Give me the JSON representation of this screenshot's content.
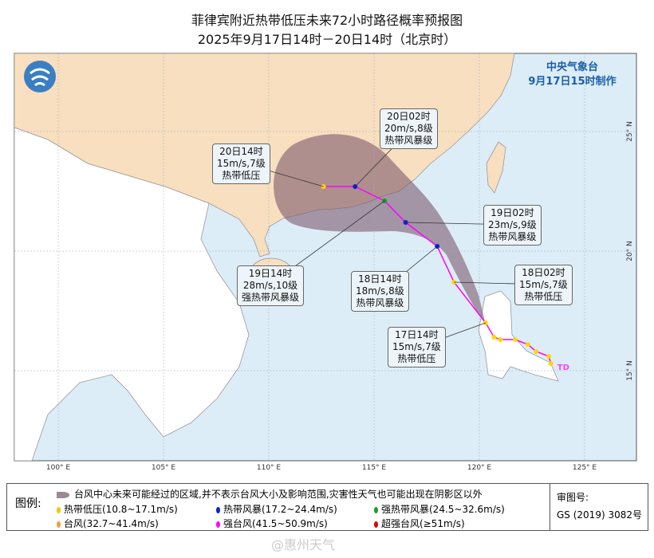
{
  "title": "菲律宾附近热带低压未来72小时路径概率预报图",
  "subtitle": "2025年9月17日14时－20日14时（北京时）",
  "agency": {
    "name": "中央气象台",
    "issued": "9月17日15时制作"
  },
  "lon_ticks": [
    "100° E",
    "105° E",
    "110° E",
    "115° E",
    "120° E",
    "125° E"
  ],
  "lat_ticks": [
    "15° N",
    "20° N",
    "25° N"
  ],
  "colors": {
    "track": "#ff00ff",
    "cone": "#7d5a6e",
    "land_china": "#f8dfbf",
    "sea": "#dcedf8",
    "td": "#ffd700",
    "ts": "#1020d0",
    "sts": "#1a9a2a"
  },
  "past_track": [
    [
      123.4,
      15.3
    ],
    [
      123.3,
      15.6
    ],
    [
      122.7,
      15.8
    ],
    [
      122.3,
      16.1
    ],
    [
      121.7,
      16.3
    ],
    [
      121.0,
      16.3
    ],
    [
      120.7,
      16.4
    ]
  ],
  "td_label": "TD",
  "forecast": [
    {
      "time": "17日14时",
      "wind": "15m/s,7级",
      "grade": "热带低压",
      "lon": 120.3,
      "lat": 17.0,
      "cat": "td"
    },
    {
      "time": "18日02时",
      "wind": "15m/s,7级",
      "grade": "热带低压",
      "lon": 118.8,
      "lat": 18.7,
      "cat": "td"
    },
    {
      "time": "18日14时",
      "wind": "18m/s,8级",
      "grade": "热带风暴级",
      "lon": 118.0,
      "lat": 20.2,
      "cat": "ts"
    },
    {
      "time": "19日02时",
      "wind": "23m/s,9级",
      "grade": "热带风暴级",
      "lon": 116.5,
      "lat": 21.2,
      "cat": "ts"
    },
    {
      "time": "19日14时",
      "wind": "28m/s,10级",
      "grade": "强热带风暴级",
      "lon": 115.5,
      "lat": 22.1,
      "cat": "sts"
    },
    {
      "time": "20日02时",
      "wind": "20m/s,8级",
      "grade": "热带风暴级",
      "lon": 114.1,
      "lat": 22.7,
      "cat": "ts"
    },
    {
      "time": "20日14时",
      "wind": "15m/s,7级",
      "grade": "热带低压",
      "lon": 112.6,
      "lat": 22.7,
      "cat": "td"
    }
  ],
  "legend": {
    "head": "图例:",
    "cone": "台风中心未来可能经过的区域,并不表示台风大小及影响范围,灾害性天气也可能出现在阴影区以外",
    "items": [
      {
        "label": "热带低压(10.8~17.1m/s)",
        "color": "#f0c800"
      },
      {
        "label": "热带风暴(17.2~24.4m/s)",
        "color": "#1020d0"
      },
      {
        "label": "强热带风暴(24.5~32.6m/s)",
        "color": "#1a9a2a"
      },
      {
        "label": "台风(32.7~41.4m/s)",
        "color": "#f59a40"
      },
      {
        "label": "强台风(41.5~50.9m/s)",
        "color": "#ff00ff"
      },
      {
        "label": "超强台风(≥51m/s)",
        "color": "#e00000"
      }
    ],
    "audit_label": "审图号:",
    "audit_no": "GS (2019) 3082号"
  },
  "watermark": "@惠州天气"
}
